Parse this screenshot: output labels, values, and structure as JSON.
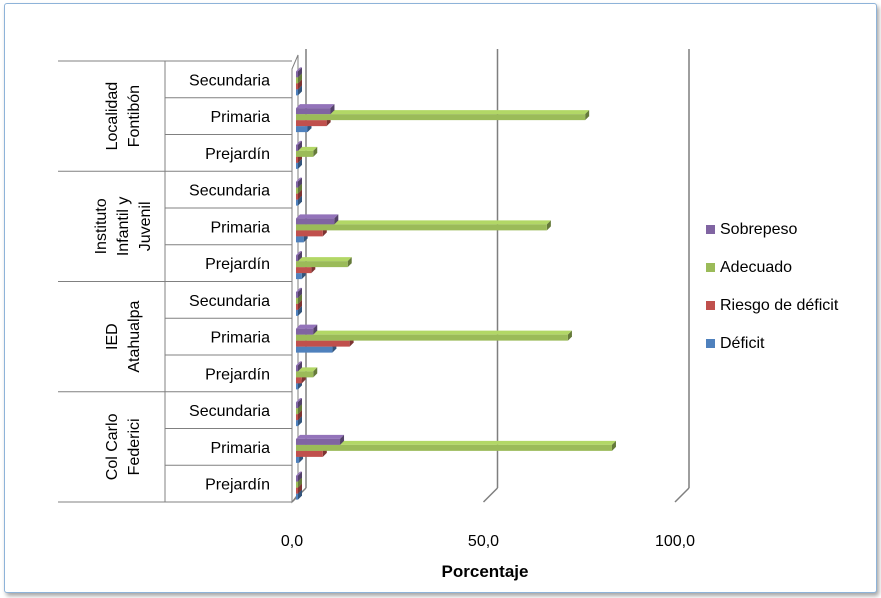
{
  "chart_data": {
    "type": "bar",
    "orientation": "horizontal",
    "style": "3d-clustered",
    "xlabel": "Porcentaje",
    "ylabel": "",
    "xlim": [
      0,
      100
    ],
    "x_ticks": [
      "0,0",
      "50,0",
      "100,0"
    ],
    "gridlines": true,
    "legend_position": "right",
    "groups": [
      {
        "label_lines": [
          "Col Carlo",
          "Federici"
        ],
        "subcategories": [
          "Secundaria",
          "Primaria",
          "Prejardín"
        ]
      },
      {
        "label_lines": [
          "IED",
          "Atahualpa"
        ],
        "subcategories": [
          "Secundaria",
          "Primaria",
          "Prejardín"
        ]
      },
      {
        "label_lines": [
          "Instituto",
          "Infantil y",
          "Juvenil"
        ],
        "subcategories": [
          "Secundaria",
          "Primaria",
          "Prejardín"
        ]
      },
      {
        "label_lines": [
          "Localidad",
          "Fontibón"
        ],
        "subcategories": [
          "Secundaria",
          "Primaria",
          "Prejardín"
        ]
      }
    ],
    "categories": [
      "Col Carlo Federici - Prejardín",
      "Col Carlo Federici - Primaria",
      "Col Carlo Federici - Secundaria",
      "IED Atahualpa - Prejardín",
      "IED Atahualpa - Primaria",
      "IED Atahualpa - Secundaria",
      "Instituto Infantil y Juvenil - Prejardín",
      "Instituto Infantil y Juvenil - Primaria",
      "Instituto Infantil y Juvenil - Secundaria",
      "Localidad Fontibón - Prejardín",
      "Localidad Fontibón - Primaria",
      "Localidad Fontibón - Secundaria"
    ],
    "series": [
      {
        "name": "Déficit",
        "color": "#4f81bd",
        "values": [
          0,
          0.8,
          0,
          0.5,
          9.5,
          0,
          1.5,
          2,
          0,
          0.5,
          3,
          0
        ]
      },
      {
        "name": "Riesgo de déficit",
        "color": "#c0504d",
        "values": [
          0,
          7,
          0,
          1.5,
          14,
          0,
          4,
          7,
          0,
          0.5,
          8,
          0
        ]
      },
      {
        "name": "Adecuado",
        "color": "#9bbb59",
        "values": [
          0,
          82.5,
          0,
          4.5,
          71,
          0,
          13.5,
          65.5,
          0,
          4.5,
          75.5,
          0
        ]
      },
      {
        "name": "Sobrepeso",
        "color": "#8064a2",
        "values": [
          0,
          11.5,
          0,
          0,
          4.5,
          0,
          0,
          10,
          0,
          0,
          9,
          0
        ]
      }
    ]
  }
}
